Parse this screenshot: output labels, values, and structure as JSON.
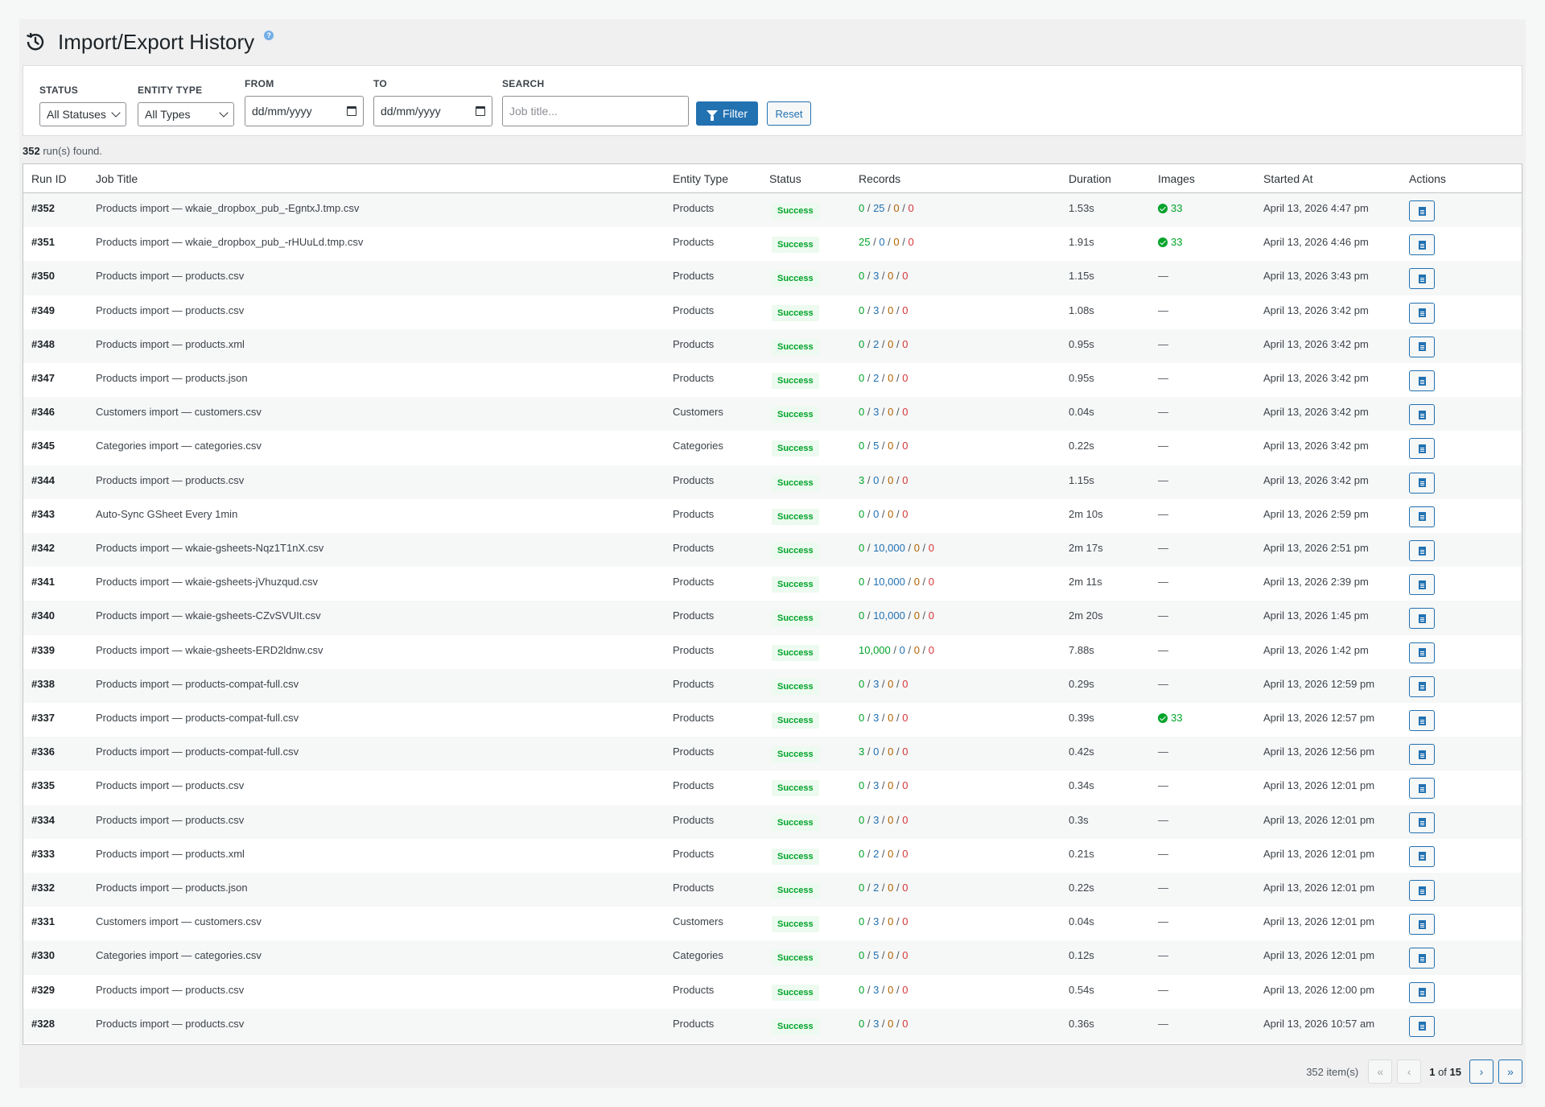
{
  "page": {
    "title": "Import/Export History",
    "help": "?"
  },
  "filters": {
    "status_label": "STATUS",
    "status_value": "All Statuses",
    "entity_label": "ENTITY TYPE",
    "entity_value": "All Types",
    "from_label": "FROM",
    "from_placeholder": "dd/mm/yyyy",
    "to_label": "TO",
    "to_placeholder": "dd/mm/yyyy",
    "search_label": "SEARCH",
    "search_placeholder": "Job title...",
    "filter_button": "Filter",
    "reset_button": "Reset"
  },
  "summary": {
    "count": "352",
    "suffix": " run(s) found."
  },
  "table": {
    "columns": [
      "Run ID",
      "Job Title",
      "Entity Type",
      "Status",
      "Records",
      "Duration",
      "Images",
      "Started At",
      "Actions"
    ],
    "rows": [
      {
        "id": "#352",
        "title": "Products import — wkaie_dropbox_pub_-EgntxJ.tmp.csv",
        "entity": "Products",
        "status": "Success",
        "rec": [
          "0",
          "25",
          "0",
          "0"
        ],
        "duration": "1.53s",
        "images": "33",
        "started": "April 13, 2026 4:47 pm"
      },
      {
        "id": "#351",
        "title": "Products import — wkaie_dropbox_pub_-rHUuLd.tmp.csv",
        "entity": "Products",
        "status": "Success",
        "rec": [
          "25",
          "0",
          "0",
          "0"
        ],
        "duration": "1.91s",
        "images": "33",
        "started": "April 13, 2026 4:46 pm"
      },
      {
        "id": "#350",
        "title": "Products import — products.csv",
        "entity": "Products",
        "status": "Success",
        "rec": [
          "0",
          "3",
          "0",
          "0"
        ],
        "duration": "1.15s",
        "images": "—",
        "started": "April 13, 2026 3:43 pm"
      },
      {
        "id": "#349",
        "title": "Products import — products.csv",
        "entity": "Products",
        "status": "Success",
        "rec": [
          "0",
          "3",
          "0",
          "0"
        ],
        "duration": "1.08s",
        "images": "—",
        "started": "April 13, 2026 3:42 pm"
      },
      {
        "id": "#348",
        "title": "Products import — products.xml",
        "entity": "Products",
        "status": "Success",
        "rec": [
          "0",
          "2",
          "0",
          "0"
        ],
        "duration": "0.95s",
        "images": "—",
        "started": "April 13, 2026 3:42 pm"
      },
      {
        "id": "#347",
        "title": "Products import — products.json",
        "entity": "Products",
        "status": "Success",
        "rec": [
          "0",
          "2",
          "0",
          "0"
        ],
        "duration": "0.95s",
        "images": "—",
        "started": "April 13, 2026 3:42 pm"
      },
      {
        "id": "#346",
        "title": "Customers import — customers.csv",
        "entity": "Customers",
        "status": "Success",
        "rec": [
          "0",
          "3",
          "0",
          "0"
        ],
        "duration": "0.04s",
        "images": "—",
        "started": "April 13, 2026 3:42 pm"
      },
      {
        "id": "#345",
        "title": "Categories import — categories.csv",
        "entity": "Categories",
        "status": "Success",
        "rec": [
          "0",
          "5",
          "0",
          "0"
        ],
        "duration": "0.22s",
        "images": "—",
        "started": "April 13, 2026 3:42 pm"
      },
      {
        "id": "#344",
        "title": "Products import — products.csv",
        "entity": "Products",
        "status": "Success",
        "rec": [
          "3",
          "0",
          "0",
          "0"
        ],
        "duration": "1.15s",
        "images": "—",
        "started": "April 13, 2026 3:42 pm"
      },
      {
        "id": "#343",
        "title": "Auto-Sync GSheet Every 1min",
        "entity": "Products",
        "status": "Success",
        "rec": [
          "0",
          "0",
          "0",
          "0"
        ],
        "duration": "2m 10s",
        "images": "—",
        "started": "April 13, 2026 2:59 pm"
      },
      {
        "id": "#342",
        "title": "Products import — wkaie-gsheets-Nqz1T1nX.csv",
        "entity": "Products",
        "status": "Success",
        "rec": [
          "0",
          "10,000",
          "0",
          "0"
        ],
        "duration": "2m 17s",
        "images": "—",
        "started": "April 13, 2026 2:51 pm"
      },
      {
        "id": "#341",
        "title": "Products import — wkaie-gsheets-jVhuzqud.csv",
        "entity": "Products",
        "status": "Success",
        "rec": [
          "0",
          "10,000",
          "0",
          "0"
        ],
        "duration": "2m 11s",
        "images": "—",
        "started": "April 13, 2026 2:39 pm"
      },
      {
        "id": "#340",
        "title": "Products import — wkaie-gsheets-CZvSVUIt.csv",
        "entity": "Products",
        "status": "Success",
        "rec": [
          "0",
          "10,000",
          "0",
          "0"
        ],
        "duration": "2m 20s",
        "images": "—",
        "started": "April 13, 2026 1:45 pm"
      },
      {
        "id": "#339",
        "title": "Products import — wkaie-gsheets-ERD2ldnw.csv",
        "entity": "Products",
        "status": "Success",
        "rec": [
          "10,000",
          "0",
          "0",
          "0"
        ],
        "duration": "7.88s",
        "images": "—",
        "started": "April 13, 2026 1:42 pm"
      },
      {
        "id": "#338",
        "title": "Products import — products-compat-full.csv",
        "entity": "Products",
        "status": "Success",
        "rec": [
          "0",
          "3",
          "0",
          "0"
        ],
        "duration": "0.29s",
        "images": "—",
        "started": "April 13, 2026 12:59 pm"
      },
      {
        "id": "#337",
        "title": "Products import — products-compat-full.csv",
        "entity": "Products",
        "status": "Success",
        "rec": [
          "0",
          "3",
          "0",
          "0"
        ],
        "duration": "0.39s",
        "images": "33",
        "started": "April 13, 2026 12:57 pm"
      },
      {
        "id": "#336",
        "title": "Products import — products-compat-full.csv",
        "entity": "Products",
        "status": "Success",
        "rec": [
          "3",
          "0",
          "0",
          "0"
        ],
        "duration": "0.42s",
        "images": "—",
        "started": "April 13, 2026 12:56 pm"
      },
      {
        "id": "#335",
        "title": "Products import — products.csv",
        "entity": "Products",
        "status": "Success",
        "rec": [
          "0",
          "3",
          "0",
          "0"
        ],
        "duration": "0.34s",
        "images": "—",
        "started": "April 13, 2026 12:01 pm"
      },
      {
        "id": "#334",
        "title": "Products import — products.csv",
        "entity": "Products",
        "status": "Success",
        "rec": [
          "0",
          "3",
          "0",
          "0"
        ],
        "duration": "0.3s",
        "images": "—",
        "started": "April 13, 2026 12:01 pm"
      },
      {
        "id": "#333",
        "title": "Products import — products.xml",
        "entity": "Products",
        "status": "Success",
        "rec": [
          "0",
          "2",
          "0",
          "0"
        ],
        "duration": "0.21s",
        "images": "—",
        "started": "April 13, 2026 12:01 pm"
      },
      {
        "id": "#332",
        "title": "Products import — products.json",
        "entity": "Products",
        "status": "Success",
        "rec": [
          "0",
          "2",
          "0",
          "0"
        ],
        "duration": "0.22s",
        "images": "—",
        "started": "April 13, 2026 12:01 pm"
      },
      {
        "id": "#331",
        "title": "Customers import — customers.csv",
        "entity": "Customers",
        "status": "Success",
        "rec": [
          "0",
          "3",
          "0",
          "0"
        ],
        "duration": "0.04s",
        "images": "—",
        "started": "April 13, 2026 12:01 pm"
      },
      {
        "id": "#330",
        "title": "Categories import — categories.csv",
        "entity": "Categories",
        "status": "Success",
        "rec": [
          "0",
          "5",
          "0",
          "0"
        ],
        "duration": "0.12s",
        "images": "—",
        "started": "April 13, 2026 12:01 pm"
      },
      {
        "id": "#329",
        "title": "Products import — products.csv",
        "entity": "Products",
        "status": "Success",
        "rec": [
          "0",
          "3",
          "0",
          "0"
        ],
        "duration": "0.54s",
        "images": "—",
        "started": "April 13, 2026 12:00 pm"
      },
      {
        "id": "#328",
        "title": "Products import — products.csv",
        "entity": "Products",
        "status": "Success",
        "rec": [
          "0",
          "3",
          "0",
          "0"
        ],
        "duration": "0.36s",
        "images": "—",
        "started": "April 13, 2026 10:57 am"
      }
    ]
  },
  "pagination": {
    "items": "352 item(s)",
    "first": "«",
    "prev": "‹",
    "current": "1",
    "of": " of ",
    "total": "15",
    "next": "›",
    "last": "»"
  },
  "colors": {
    "accent": "#2271b1",
    "success": "#00a32a",
    "created": "#00a32a",
    "updated": "#2271b1",
    "skipped": "#b26200",
    "failed": "#d63638"
  }
}
